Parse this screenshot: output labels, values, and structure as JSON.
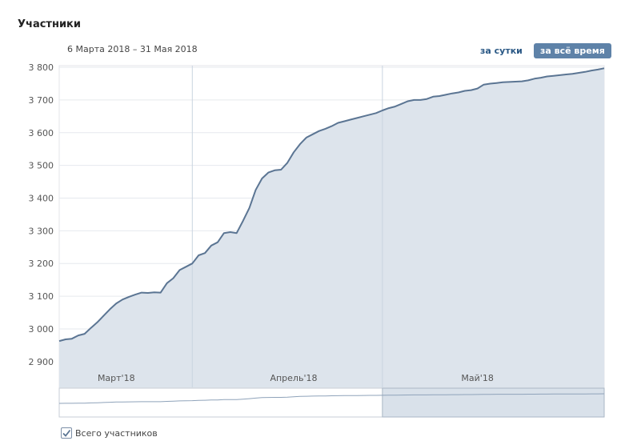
{
  "header": {
    "title": "Участники",
    "date_range": "6 Марта 2018 – 31 Мая 2018",
    "btn_day": "за сутки",
    "btn_all": "за всё время"
  },
  "legend": {
    "label": "Всего участников",
    "checked": true
  },
  "colors": {
    "line": "#5b7593",
    "area": "#dde4ec",
    "grid": "#e6e9ee",
    "month_divider": "#c9d4e0",
    "axis_text": "#555555",
    "navigator_bg": "#ffffff",
    "navigator_selection": "#d9e1ea"
  },
  "chart_data": {
    "type": "area",
    "title": "",
    "xlabel": "",
    "ylabel": "",
    "ylim": [
      2880,
      3805
    ],
    "xlim": [
      "2018-03-06",
      "2018-05-31"
    ],
    "yticks": [
      2900,
      3000,
      3100,
      3200,
      3300,
      3400,
      3500,
      3600,
      3700,
      3800
    ],
    "ytick_labels": [
      "2 900",
      "3 000",
      "3 100",
      "3 200",
      "3 300",
      "3 400",
      "3 500",
      "3 600",
      "3 700",
      "3 800"
    ],
    "month_labels": [
      {
        "label": "Март'18",
        "date": "2018-03-15"
      },
      {
        "label": "Апрель'18",
        "date": "2018-04-12"
      },
      {
        "label": "Май'18",
        "date": "2018-05-11"
      }
    ],
    "month_dividers": [
      "2018-03-27",
      "2018-04-26"
    ],
    "grid": true,
    "series": [
      {
        "name": "Всего участников",
        "x": [
          "2018-03-06",
          "2018-03-07",
          "2018-03-08",
          "2018-03-09",
          "2018-03-10",
          "2018-03-11",
          "2018-03-12",
          "2018-03-13",
          "2018-03-14",
          "2018-03-15",
          "2018-03-16",
          "2018-03-17",
          "2018-03-18",
          "2018-03-19",
          "2018-03-20",
          "2018-03-21",
          "2018-03-22",
          "2018-03-23",
          "2018-03-24",
          "2018-03-25",
          "2018-03-26",
          "2018-03-27",
          "2018-03-28",
          "2018-03-29",
          "2018-03-30",
          "2018-03-31",
          "2018-04-01",
          "2018-04-02",
          "2018-04-03",
          "2018-04-04",
          "2018-04-05",
          "2018-04-06",
          "2018-04-07",
          "2018-04-08",
          "2018-04-09",
          "2018-04-10",
          "2018-04-11",
          "2018-04-12",
          "2018-04-13",
          "2018-04-14",
          "2018-04-15",
          "2018-04-16",
          "2018-04-17",
          "2018-04-18",
          "2018-04-19",
          "2018-04-20",
          "2018-04-21",
          "2018-04-22",
          "2018-04-23",
          "2018-04-24",
          "2018-04-25",
          "2018-04-26",
          "2018-04-27",
          "2018-04-28",
          "2018-04-29",
          "2018-04-30",
          "2018-05-01",
          "2018-05-02",
          "2018-05-03",
          "2018-05-04",
          "2018-05-05",
          "2018-05-06",
          "2018-05-07",
          "2018-05-08",
          "2018-05-09",
          "2018-05-10",
          "2018-05-11",
          "2018-05-12",
          "2018-05-13",
          "2018-05-14",
          "2018-05-15",
          "2018-05-16",
          "2018-05-17",
          "2018-05-18",
          "2018-05-19",
          "2018-05-20",
          "2018-05-21",
          "2018-05-22",
          "2018-05-23",
          "2018-05-24",
          "2018-05-25",
          "2018-05-26",
          "2018-05-27",
          "2018-05-28",
          "2018-05-29",
          "2018-05-30",
          "2018-05-31"
        ],
        "values": [
          2963,
          2968,
          2970,
          2980,
          2985,
          3003,
          3020,
          3040,
          3060,
          3078,
          3090,
          3098,
          3105,
          3111,
          3110,
          3112,
          3111,
          3140,
          3155,
          3180,
          3190,
          3200,
          3225,
          3232,
          3255,
          3265,
          3293,
          3296,
          3293,
          3330,
          3370,
          3425,
          3460,
          3478,
          3485,
          3487,
          3508,
          3540,
          3565,
          3585,
          3595,
          3605,
          3612,
          3620,
          3630,
          3635,
          3640,
          3645,
          3650,
          3655,
          3660,
          3668,
          3675,
          3680,
          3688,
          3696,
          3700,
          3700,
          3703,
          3710,
          3712,
          3716,
          3720,
          3723,
          3728,
          3730,
          3735,
          3747,
          3750,
          3752,
          3754,
          3755,
          3756,
          3757,
          3760,
          3765,
          3768,
          3772,
          3774,
          3776,
          3778,
          3780,
          3783,
          3786,
          3790,
          3793,
          3797
        ]
      }
    ]
  }
}
